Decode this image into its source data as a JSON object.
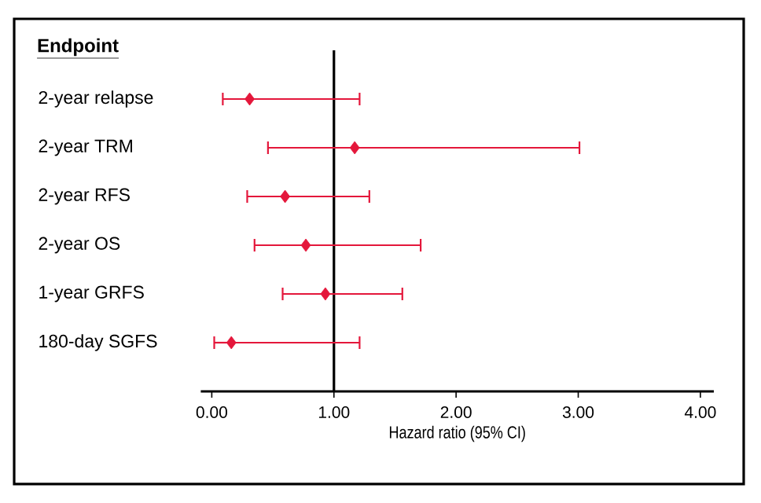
{
  "chart_data": {
    "type": "scatter",
    "orientation": "horizontal",
    "title": "Endpoint",
    "xlabel": "Hazard ratio (95% CI)",
    "categories": [
      "2-year relapse",
      "2-year TRM",
      "2-year RFS",
      "2-year OS",
      "1-year GRFS",
      "180-day SGFS"
    ],
    "values": [
      0.31,
      1.17,
      0.6,
      0.77,
      0.93,
      0.16
    ],
    "errors": [
      [
        0.09,
        1.21
      ],
      [
        0.46,
        3.01
      ],
      [
        0.29,
        1.29
      ],
      [
        0.35,
        1.71
      ],
      [
        0.58,
        1.56
      ],
      [
        0.02,
        1.21
      ]
    ],
    "color": "#e4173b",
    "marker": "diamond",
    "grid": false,
    "xlim": [
      -0.09,
      4.11
    ],
    "xticks": [
      {
        "value": 0,
        "label": "0.00"
      },
      {
        "value": 1,
        "label": "1.00"
      },
      {
        "value": 2,
        "label": "2.00"
      },
      {
        "value": 3,
        "label": "3.00"
      },
      {
        "value": 4,
        "label": "4.00"
      }
    ],
    "ref_lines": [
      {
        "axis": "x",
        "value": 1,
        "color": "#000000"
      }
    ]
  }
}
